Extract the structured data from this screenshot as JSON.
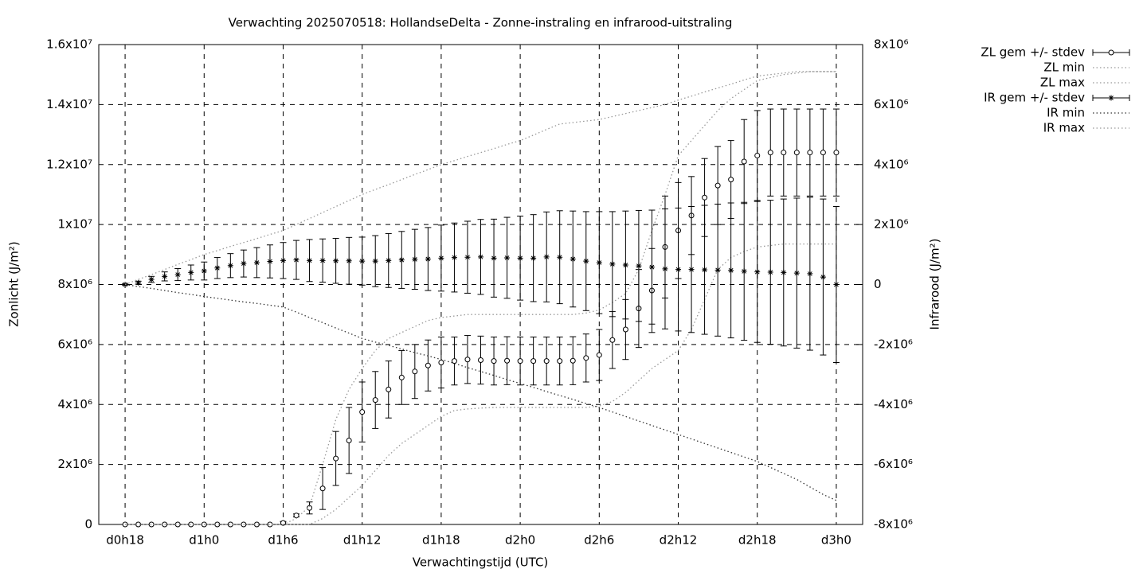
{
  "chart_data": {
    "type": "errorbar",
    "title": "Verwachting 2025070518: HollandseDelta - Zonne-instraling en infrarood-uitstraling",
    "x_label": "Verwachtingstijd (UTC)",
    "y_label": "Zonlicht (J/m²)",
    "y2_label": "Infrarood (J/m²)",
    "grid": true,
    "legend": "outside-right",
    "x": [
      18,
      19,
      20,
      21,
      22,
      23,
      24,
      25,
      26,
      27,
      28,
      29,
      30,
      31,
      32,
      33,
      34,
      35,
      36,
      37,
      38,
      39,
      40,
      41,
      42,
      43,
      44,
      45,
      46,
      47,
      48,
      49,
      50,
      51,
      52,
      53,
      54,
      55,
      56,
      57,
      58,
      59,
      60,
      61,
      62,
      63,
      64,
      65,
      66,
      67,
      68,
      69,
      70,
      71,
      72
    ],
    "xlim": [
      16,
      74
    ],
    "xticks": [
      {
        "value": 18,
        "label": "d0h18"
      },
      {
        "value": 24,
        "label": "d1h0"
      },
      {
        "value": 30,
        "label": "d1h6"
      },
      {
        "value": 36,
        "label": "d1h12"
      },
      {
        "value": 42,
        "label": "d1h18"
      },
      {
        "value": 48,
        "label": "d2h0"
      },
      {
        "value": 54,
        "label": "d2h6"
      },
      {
        "value": 60,
        "label": "d2h12"
      },
      {
        "value": 66,
        "label": "d2h18"
      },
      {
        "value": 72,
        "label": "d3h0"
      }
    ],
    "ylim": [
      0,
      16000000
    ],
    "yticks": [
      0,
      {
        "value": 2000000,
        "label": "2x10⁶"
      },
      {
        "value": 4000000,
        "label": "4x10⁶"
      },
      {
        "value": 6000000,
        "label": "6x10⁶"
      },
      {
        "value": 8000000,
        "label": "8x10⁶"
      },
      {
        "value": 10000000,
        "label": "1x10⁷"
      },
      {
        "value": 12000000,
        "label": "1.2x10⁷"
      },
      {
        "value": 14000000,
        "label": "1.4x10⁷"
      },
      {
        "value": 16000000,
        "label": "1.6x10⁷"
      }
    ],
    "y2lim": [
      -8000000,
      8000000
    ],
    "y2ticks": [
      {
        "value": -8000000,
        "label": "-8x10⁶"
      },
      {
        "value": -6000000,
        "label": "-6x10⁶"
      },
      {
        "value": -4000000,
        "label": "-4x10⁶"
      },
      {
        "value": -2000000,
        "label": "-2x10⁶"
      },
      0,
      {
        "value": 2000000,
        "label": "2x10⁶"
      },
      {
        "value": 4000000,
        "label": "4x10⁶"
      },
      {
        "value": 6000000,
        "label": "6x10⁶"
      },
      {
        "value": 8000000,
        "label": "8x10⁶"
      }
    ],
    "series": [
      {
        "name": "ZL gem +/- stdev",
        "color": "#000000",
        "style": "errorbar",
        "marker": "circle",
        "values": [
          0,
          0,
          0,
          0,
          0,
          0,
          0,
          0,
          0,
          0,
          0,
          0,
          50000,
          300000,
          550000,
          1200000,
          2200000,
          2800000,
          3750000,
          4150000,
          4500000,
          4900000,
          5100000,
          5300000,
          5400000,
          5450000,
          5500000,
          5480000,
          5450000,
          5460000,
          5450000,
          5450000,
          5450000,
          5450000,
          5460000,
          5550000,
          5650000,
          6150000,
          6500000,
          7200000,
          7800000,
          9250000,
          9800000,
          10300000,
          10900000,
          11300000,
          11500000,
          12100000,
          12300000,
          12400000,
          12400000,
          12400000,
          12400000,
          12400000,
          12400000
        ],
        "errors": [
          0,
          0,
          0,
          0,
          0,
          0,
          0,
          0,
          0,
          0,
          0,
          0,
          50000,
          50000,
          200000,
          700000,
          900000,
          1100000,
          1000000,
          950000,
          950000,
          900000,
          900000,
          850000,
          850000,
          800000,
          800000,
          800000,
          800000,
          800000,
          800000,
          800000,
          800000,
          800000,
          800000,
          800000,
          850000,
          950000,
          1000000,
          1300000,
          1400000,
          1700000,
          1600000,
          1300000,
          1300000,
          1300000,
          1300000,
          1400000,
          1500000,
          1450000,
          1450000,
          1450000,
          1450000,
          1450000,
          1450000
        ]
      },
      {
        "name": "ZL min",
        "color": "#999999",
        "style": "dotted",
        "values": [
          0,
          0,
          0,
          0,
          0,
          0,
          0,
          0,
          0,
          0,
          0,
          0,
          0,
          0,
          0,
          200000,
          500000,
          900000,
          1300000,
          1800000,
          2300000,
          2700000,
          3000000,
          3300000,
          3600000,
          3800000,
          3850000,
          3880000,
          3900000,
          3900000,
          3900000,
          3900000,
          3900000,
          3900000,
          3900000,
          3900000,
          3950000,
          4100000,
          4400000,
          4800000,
          5200000,
          5500000,
          5800000,
          6500000,
          7500000,
          8500000,
          8900000,
          9100000,
          9250000,
          9300000,
          9350000,
          9350000,
          9350000,
          9350000,
          9350000
        ]
      },
      {
        "name": "ZL max",
        "color": "#999999",
        "style": "dotted",
        "values": [
          0,
          0,
          0,
          0,
          0,
          0,
          0,
          0,
          0,
          0,
          0,
          0,
          0,
          200000,
          600000,
          2000000,
          3500000,
          4500000,
          5200000,
          5800000,
          6200000,
          6400000,
          6600000,
          6800000,
          6900000,
          6950000,
          7000000,
          7000000,
          7000000,
          7000000,
          7000000,
          7000000,
          7000000,
          7000000,
          7000000,
          7050000,
          7150000,
          7400000,
          7700000,
          8500000,
          9800000,
          11000000,
          12300000,
          12800000,
          13300000,
          13800000,
          14200000,
          14500000,
          14800000,
          14900000,
          15000000,
          15050000,
          15100000,
          15100000,
          15100000
        ]
      },
      {
        "name": "IR gem +/- stdev",
        "color": "#000000",
        "style": "errorbar",
        "marker": "star",
        "axis": "y2",
        "values": [
          0,
          60000,
          170000,
          270000,
          330000,
          400000,
          450000,
          550000,
          630000,
          700000,
          730000,
          770000,
          800000,
          820000,
          800000,
          800000,
          790000,
          790000,
          780000,
          780000,
          800000,
          820000,
          840000,
          850000,
          880000,
          900000,
          910000,
          920000,
          880000,
          890000,
          880000,
          880000,
          920000,
          910000,
          850000,
          780000,
          730000,
          680000,
          650000,
          620000,
          580000,
          520000,
          500000,
          500000,
          490000,
          480000,
          470000,
          440000,
          420000,
          410000,
          400000,
          380000,
          360000,
          250000,
          0
        ],
        "errors": [
          20000,
          50000,
          100000,
          150000,
          200000,
          250000,
          300000,
          350000,
          400000,
          450000,
          500000,
          550000,
          600000,
          650000,
          700000,
          720000,
          750000,
          780000,
          800000,
          850000,
          900000,
          950000,
          1000000,
          1050000,
          1100000,
          1150000,
          1200000,
          1250000,
          1300000,
          1350000,
          1400000,
          1450000,
          1500000,
          1550000,
          1600000,
          1650000,
          1700000,
          1750000,
          1800000,
          1850000,
          1900000,
          2000000,
          2050000,
          2100000,
          2150000,
          2200000,
          2250000,
          2300000,
          2350000,
          2400000,
          2450000,
          2500000,
          2550000,
          2600000,
          2600000
        ]
      },
      {
        "name": "IR min",
        "color": "#333333",
        "style": "dotted",
        "axis": "y2",
        "values": [
          0,
          -70000,
          -130000,
          -200000,
          -270000,
          -330000,
          -400000,
          -460000,
          -520000,
          -580000,
          -630000,
          -690000,
          -750000,
          -920000,
          -1100000,
          -1270000,
          -1450000,
          -1620000,
          -1800000,
          -1920000,
          -2030000,
          -2150000,
          -2270000,
          -2380000,
          -2500000,
          -2630000,
          -2770000,
          -2900000,
          -3030000,
          -3170000,
          -3300000,
          -3430000,
          -3570000,
          -3700000,
          -3830000,
          -3970000,
          -4100000,
          -4250000,
          -4400000,
          -4550000,
          -4700000,
          -4850000,
          -5000000,
          -5150000,
          -5300000,
          -5450000,
          -5600000,
          -5750000,
          -5900000,
          -6100000,
          -6300000,
          -6500000,
          -6750000,
          -7000000,
          -7200000
        ]
      },
      {
        "name": "IR max",
        "color": "#999999",
        "style": "dotted",
        "axis": "y2",
        "values": [
          0,
          170000,
          330000,
          500000,
          670000,
          830000,
          1000000,
          1130000,
          1270000,
          1400000,
          1530000,
          1670000,
          1800000,
          2000000,
          2200000,
          2400000,
          2600000,
          2800000,
          3000000,
          3170000,
          3330000,
          3500000,
          3670000,
          3830000,
          4000000,
          4130000,
          4270000,
          4400000,
          4530000,
          4670000,
          4800000,
          4980000,
          5170000,
          5350000,
          5400000,
          5450000,
          5500000,
          5600000,
          5700000,
          5800000,
          5900000,
          6000000,
          6150000,
          6280000,
          6420000,
          6550000,
          6680000,
          6820000,
          6950000,
          7000000,
          7050000,
          7100000,
          7100000,
          7100000,
          7100000
        ]
      }
    ]
  }
}
